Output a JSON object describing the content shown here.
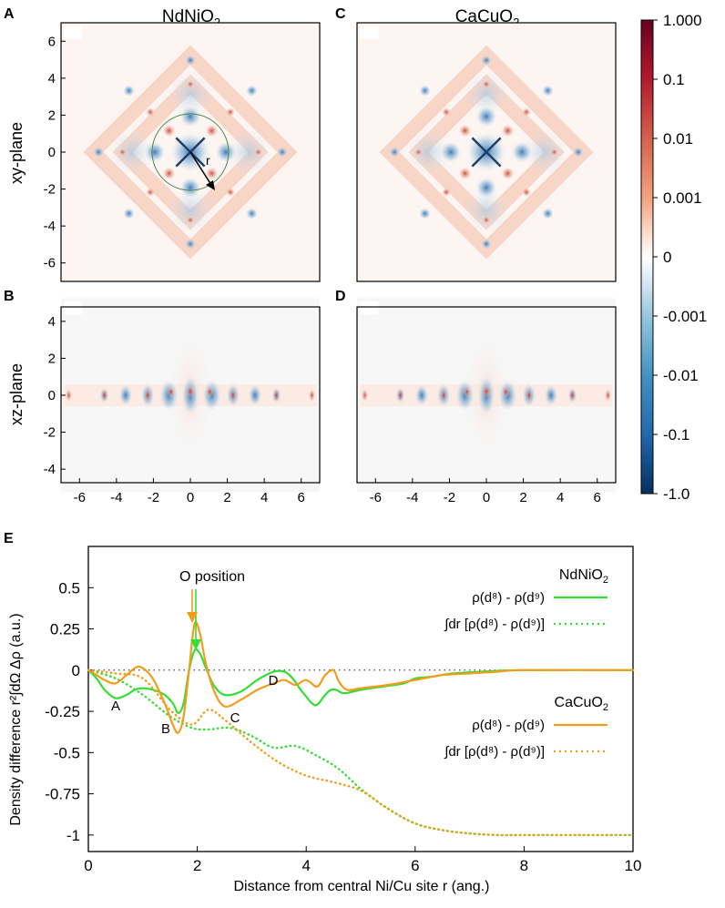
{
  "panel_labels": {
    "A": "A",
    "B": "B",
    "C": "C",
    "D": "D",
    "E": "E"
  },
  "columns": {
    "left": {
      "base": "NdNiO",
      "sub": "2"
    },
    "right": {
      "base": "CaCuO",
      "sub": "2"
    }
  },
  "rows": {
    "xy": "xy-plane",
    "xz": "xz-plane"
  },
  "ticks": {
    "xy_y": [
      "6",
      "4",
      "2",
      "0",
      "-2",
      "-4",
      "-6"
    ],
    "xz_y": [
      "4",
      "2",
      "0",
      "-2",
      "-4"
    ],
    "x": [
      "-6",
      "-4",
      "-2",
      "0",
      "2",
      "4",
      "6"
    ]
  },
  "radius_label": "r",
  "colorbar": {
    "labels": [
      "1.000",
      "0.1",
      "0.01",
      "0.001",
      "0",
      "-0.001",
      "-0.01",
      "-0.1",
      "-1.0"
    ],
    "color_pos": "#67001f",
    "color_mid": "#ffffff",
    "color_neg": "#053061"
  },
  "colors": {
    "nd_line": "#33dd33",
    "ca_line": "#f39c1a",
    "ref_line": "#333333"
  },
  "chart_data": {
    "type": "line",
    "title": "",
    "xlabel": "Distance from central Ni/Cu site r (ang.)",
    "ylabel": "Density difference r²∫dΩ Δρ (a.u.)",
    "xlim": [
      0,
      10
    ],
    "ylim": [
      -1.1,
      0.75
    ],
    "xticks": [
      "0",
      "2",
      "4",
      "6",
      "8",
      "10"
    ],
    "yticks": [
      "0.5",
      "0.25",
      "0",
      "-0.25",
      "-0.5",
      "-0.75",
      "-1"
    ],
    "annotations": {
      "o_position": "O position",
      "A": "A",
      "B": "B",
      "C": "C",
      "D": "D"
    },
    "legend": {
      "nd_title": {
        "base": "NdNiO",
        "sub": "2"
      },
      "ca_title": {
        "base": "CaCuO",
        "sub": "2"
      },
      "solid": "ρ(d⁸) - ρ(d⁹)",
      "dotted": "∫dr [ρ(d⁸) - ρ(d⁹)]"
    },
    "series": [
      {
        "name": "NdNiO2 ρ(d8) - ρ(d9)",
        "style": "solid",
        "color": "#33dd33",
        "x": [
          0,
          0.15,
          0.3,
          0.5,
          0.7,
          0.85,
          1.0,
          1.2,
          1.4,
          1.55,
          1.65,
          1.75,
          1.85,
          1.95,
          2.05,
          2.15,
          2.3,
          2.5,
          2.8,
          3.1,
          3.4,
          3.6,
          3.75,
          3.9,
          4.0,
          4.1,
          4.2,
          4.35,
          4.45,
          4.55,
          4.7,
          5.0,
          5.4,
          5.8,
          6.0,
          6.3,
          6.7,
          7.2,
          8.0,
          10.0
        ],
        "y": [
          0,
          -0.05,
          -0.12,
          -0.17,
          -0.15,
          -0.12,
          -0.11,
          -0.12,
          -0.15,
          -0.2,
          -0.26,
          -0.2,
          0.0,
          0.12,
          0.1,
          0.02,
          -0.09,
          -0.15,
          -0.13,
          -0.06,
          -0.01,
          -0.01,
          -0.05,
          -0.12,
          -0.16,
          -0.2,
          -0.21,
          -0.15,
          -0.12,
          -0.12,
          -0.14,
          -0.12,
          -0.1,
          -0.08,
          -0.05,
          -0.04,
          -0.02,
          -0.01,
          0,
          0
        ]
      },
      {
        "name": "NdNiO2 ∫dr",
        "style": "dotted",
        "color": "#33dd33",
        "x": [
          0,
          0.5,
          1.0,
          1.5,
          1.9,
          2.2,
          2.6,
          3.0,
          3.4,
          3.8,
          4.2,
          4.6,
          5.0,
          5.5,
          6.0,
          6.5,
          7.0,
          7.5,
          8.0,
          9.0,
          10.0
        ],
        "y": [
          0,
          -0.05,
          -0.15,
          -0.28,
          -0.35,
          -0.36,
          -0.35,
          -0.4,
          -0.47,
          -0.46,
          -0.52,
          -0.6,
          -0.72,
          -0.84,
          -0.93,
          -0.97,
          -0.99,
          -1.0,
          -1.0,
          -1.0,
          -1.0
        ]
      },
      {
        "name": "CaCuO2 ρ(d8) - ρ(d9)",
        "style": "solid",
        "color": "#f39c1a",
        "x": [
          0,
          0.15,
          0.3,
          0.5,
          0.7,
          0.9,
          1.05,
          1.2,
          1.4,
          1.55,
          1.65,
          1.75,
          1.85,
          1.95,
          2.05,
          2.15,
          2.3,
          2.5,
          2.8,
          3.1,
          3.4,
          3.6,
          3.8,
          4.0,
          4.2,
          4.35,
          4.5,
          4.6,
          4.75,
          5.0,
          5.5,
          6.0,
          6.5,
          7.0,
          7.5,
          8.0,
          10.0
        ],
        "y": [
          0,
          -0.03,
          -0.06,
          -0.08,
          -0.03,
          0.02,
          0.0,
          -0.06,
          -0.2,
          -0.33,
          -0.38,
          -0.28,
          0.0,
          0.28,
          0.22,
          0.05,
          -0.12,
          -0.22,
          -0.18,
          -0.12,
          -0.08,
          -0.06,
          -0.09,
          -0.06,
          -0.1,
          -0.03,
          0.0,
          -0.07,
          -0.12,
          -0.11,
          -0.09,
          -0.06,
          -0.03,
          -0.02,
          -0.01,
          0,
          0
        ]
      },
      {
        "name": "CaCuO2 ∫dr",
        "style": "dotted",
        "color": "#f39c1a",
        "x": [
          0,
          0.5,
          1.0,
          1.5,
          1.9,
          2.2,
          2.5,
          3.0,
          3.5,
          4.0,
          4.5,
          5.0,
          5.5,
          6.0,
          6.5,
          7.0,
          7.5,
          8.0,
          9.0,
          10.0
        ],
        "y": [
          0,
          -0.02,
          -0.05,
          -0.24,
          -0.33,
          -0.24,
          -0.3,
          -0.44,
          -0.56,
          -0.64,
          -0.68,
          -0.73,
          -0.84,
          -0.93,
          -0.97,
          -0.99,
          -1.0,
          -1.0,
          -1.0,
          -1.0
        ]
      }
    ]
  }
}
